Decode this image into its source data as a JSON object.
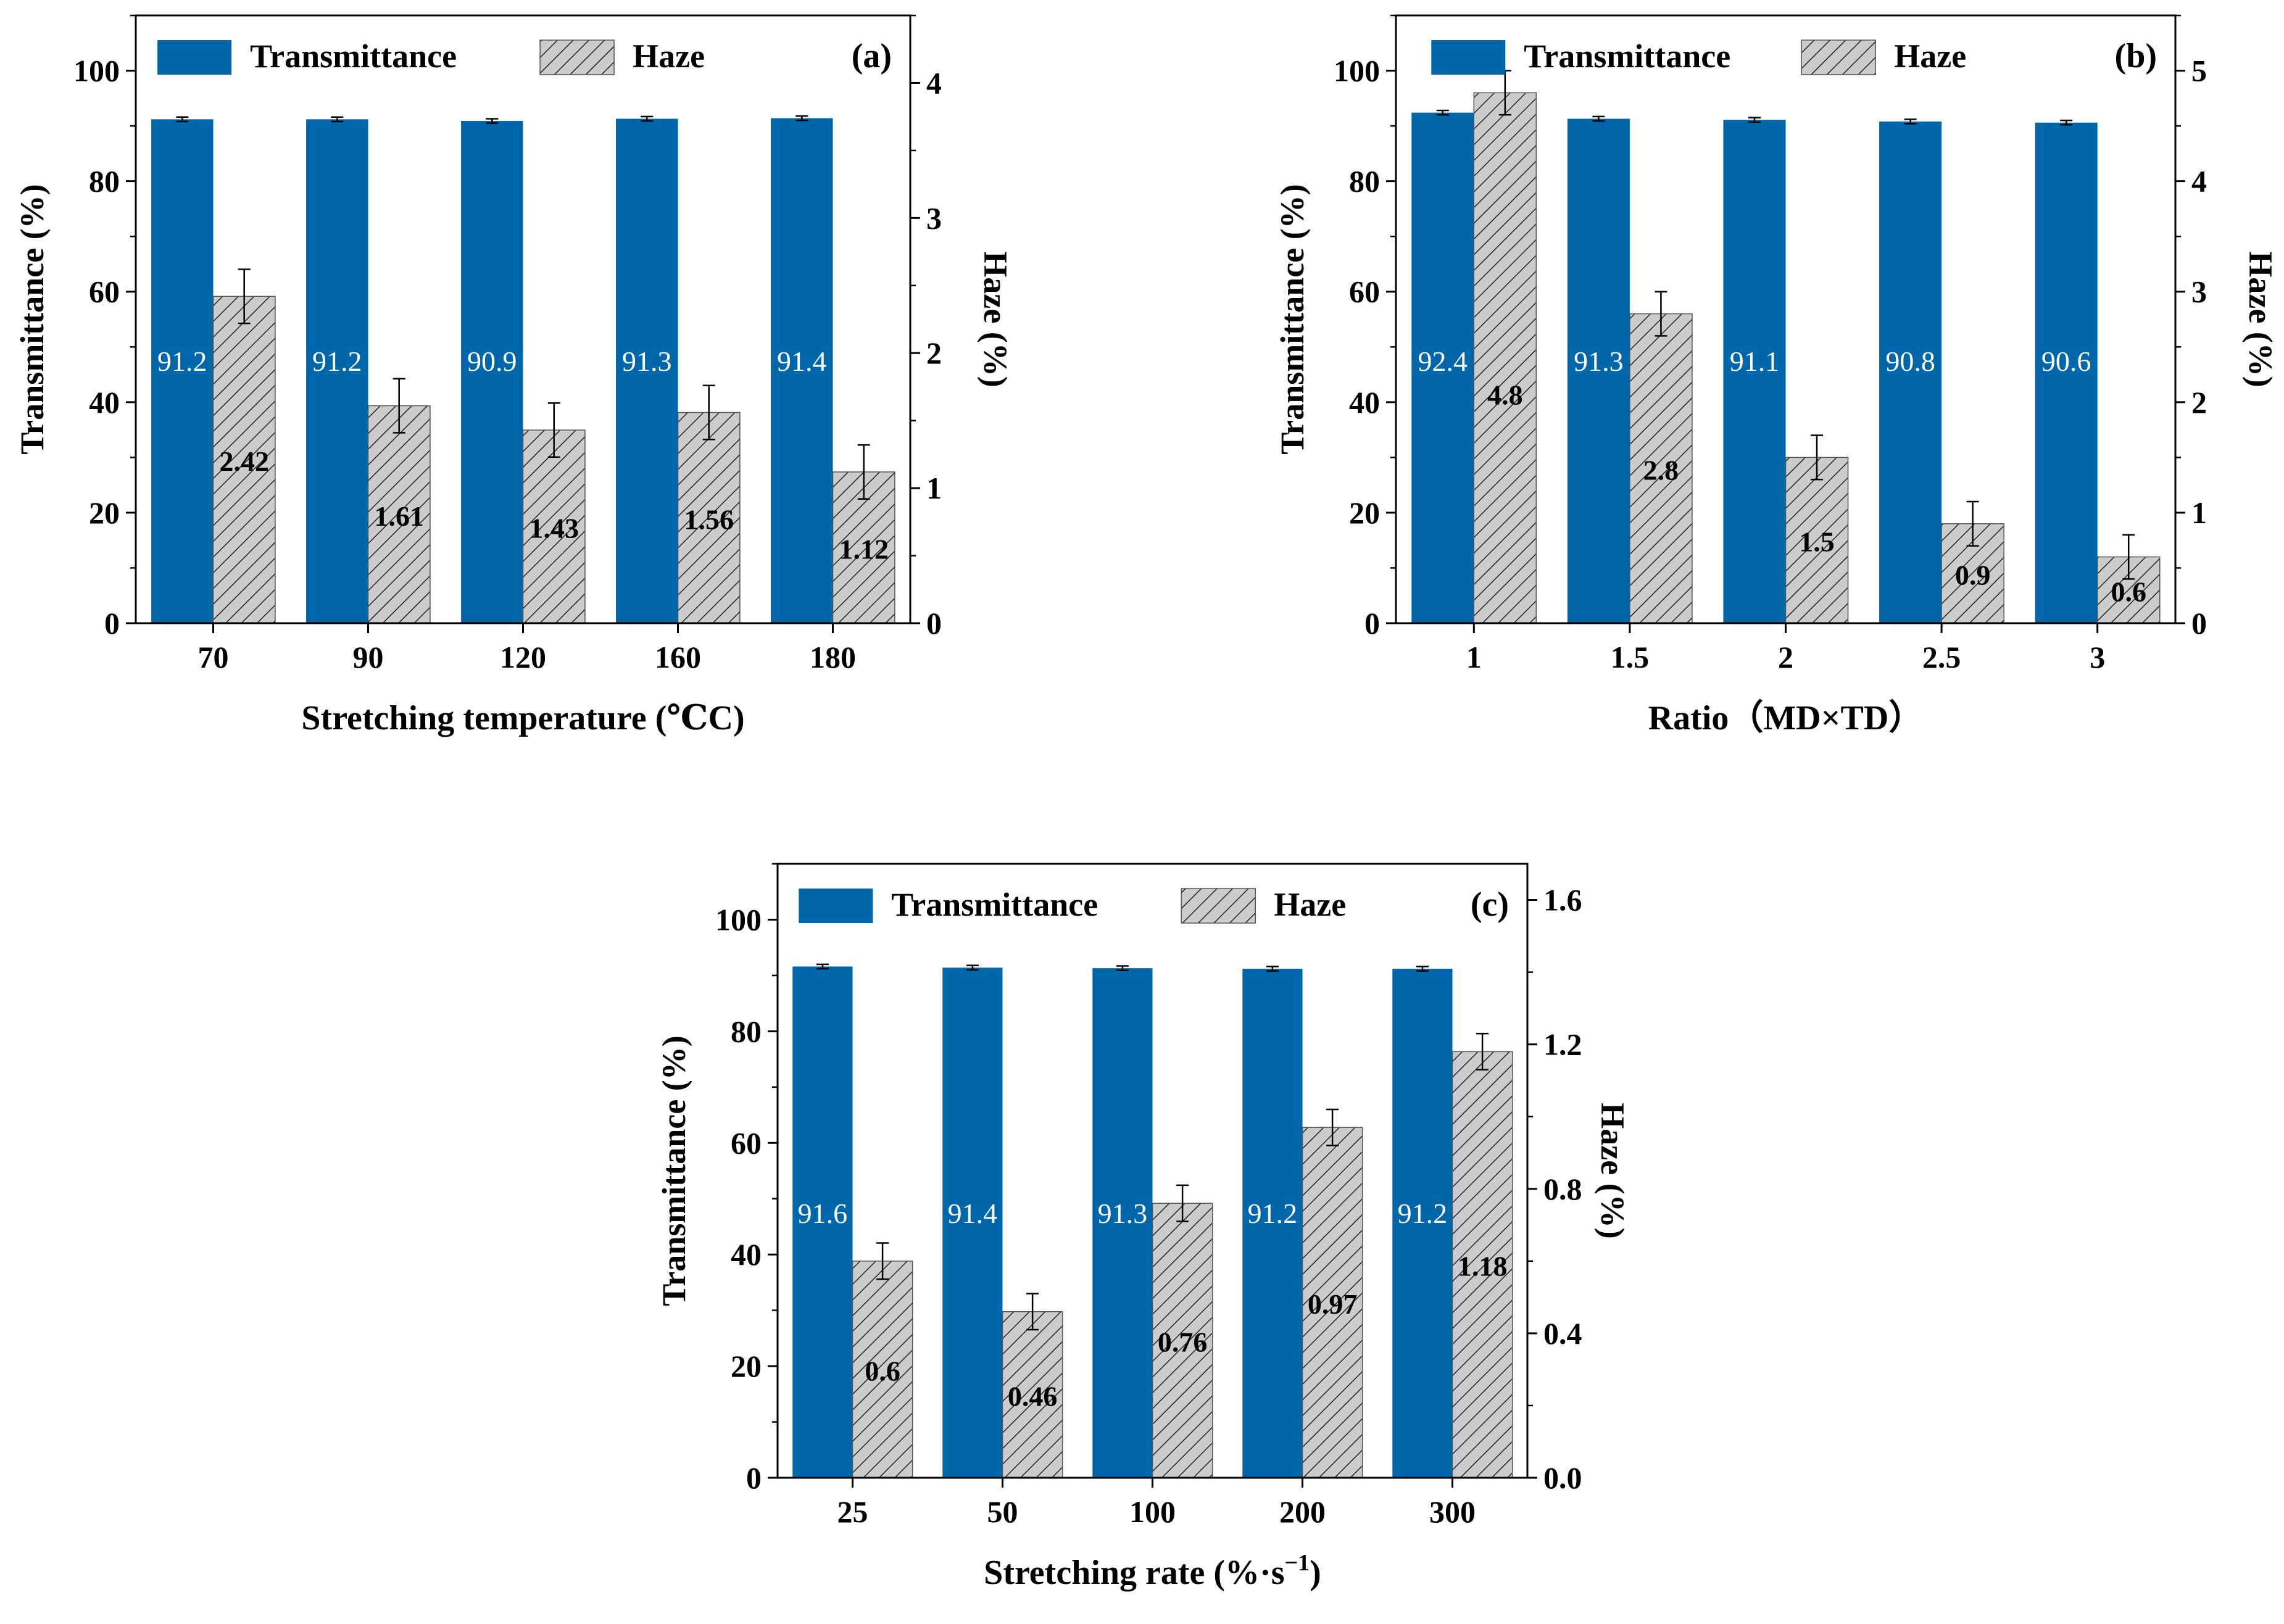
{
  "chart_data": [
    {
      "id": "a",
      "type": "bar",
      "panel_label": "(a)",
      "categories": [
        "70",
        "90",
        "120",
        "160",
        "180"
      ],
      "xlabel": "Stretching temperature (℃C)",
      "ylabel": "Transmittance (%)",
      "y2label": "Haze (%)",
      "ylim": [
        0,
        110
      ],
      "y2lim": [
        0,
        4.5
      ],
      "yticks": [
        "0",
        "20",
        "40",
        "60",
        "80",
        "100"
      ],
      "y2ticks": [
        "0",
        "1",
        "2",
        "3",
        "4"
      ],
      "legend_position": "top",
      "series": [
        {
          "name": "Transmittance",
          "axis": "left",
          "values": [
            91.2,
            91.2,
            90.9,
            91.3,
            91.4
          ],
          "errors": [
            0.4,
            0.4,
            0.4,
            0.4,
            0.4
          ],
          "labels": [
            "91.2",
            "91.2",
            "90.9",
            "91.3",
            "91.4"
          ]
        },
        {
          "name": "Haze",
          "axis": "right",
          "values": [
            2.42,
            1.61,
            1.43,
            1.56,
            1.12
          ],
          "errors": [
            0.2,
            0.2,
            0.2,
            0.2,
            0.2
          ],
          "labels": [
            "2.42",
            "1.61",
            "1.43",
            "1.56",
            "1.12"
          ]
        }
      ]
    },
    {
      "id": "b",
      "type": "bar",
      "panel_label": "(b)",
      "categories": [
        "1",
        "1.5",
        "2",
        "2.5",
        "3"
      ],
      "xlabel": "Ratio（MD×TD）",
      "ylabel": "Transmittance (%)",
      "y2label": "Haze (%)",
      "ylim": [
        0,
        110
      ],
      "y2lim": [
        0,
        5.5
      ],
      "yticks": [
        "0",
        "20",
        "40",
        "60",
        "80",
        "100"
      ],
      "y2ticks": [
        "0",
        "1",
        "2",
        "3",
        "4",
        "5"
      ],
      "legend_position": "top",
      "series": [
        {
          "name": "Transmittance",
          "axis": "left",
          "values": [
            92.4,
            91.3,
            91.1,
            90.8,
            90.6
          ],
          "errors": [
            0.4,
            0.4,
            0.4,
            0.4,
            0.4
          ],
          "labels": [
            "92.4",
            "91.3",
            "91.1",
            "90.8",
            "90.6"
          ]
        },
        {
          "name": "Haze",
          "axis": "right",
          "values": [
            4.8,
            2.8,
            1.5,
            0.9,
            0.6
          ],
          "errors": [
            0.2,
            0.2,
            0.2,
            0.2,
            0.2
          ],
          "labels": [
            "4.8",
            "2.8",
            "1.5",
            "0.9",
            "0.6"
          ]
        }
      ]
    },
    {
      "id": "c",
      "type": "bar",
      "panel_label": "(c)",
      "categories": [
        "25",
        "50",
        "100",
        "200",
        "300"
      ],
      "xlabel": "Stretching rate (%·s",
      "xlabel_sup": "−1",
      "xlabel_close": ")",
      "ylabel": "Transmittance (%)",
      "y2label": "Haze (%)",
      "ylim": [
        0,
        110
      ],
      "y2lim": [
        0,
        1.7
      ],
      "yticks": [
        "0",
        "20",
        "40",
        "60",
        "80",
        "100"
      ],
      "y2ticks": [
        "0.0",
        "0.4",
        "0.8",
        "1.2",
        "1.6"
      ],
      "legend_position": "top",
      "series": [
        {
          "name": "Transmittance",
          "axis": "left",
          "values": [
            91.6,
            91.4,
            91.3,
            91.2,
            91.2
          ],
          "errors": [
            0.4,
            0.4,
            0.4,
            0.4,
            0.4
          ],
          "labels": [
            "91.6",
            "91.4",
            "91.3",
            "91.2",
            "91.2"
          ]
        },
        {
          "name": "Haze",
          "axis": "right",
          "values": [
            0.6,
            0.46,
            0.76,
            0.97,
            1.18
          ],
          "errors": [
            0.05,
            0.05,
            0.05,
            0.05,
            0.05
          ],
          "labels": [
            "0.6",
            "0.46",
            "0.76",
            "0.97",
            "1.18"
          ]
        }
      ]
    }
  ],
  "colors": {
    "transmittance": "#0066aa",
    "haze_fill": "#cccccc",
    "haze_hatch": "#222222",
    "bar_label_transmittance": "#ffffff",
    "bar_label_haze": "#000000",
    "axis": "#000000"
  }
}
